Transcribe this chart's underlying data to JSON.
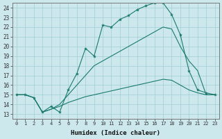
{
  "xlabel": "Humidex (Indice chaleur)",
  "xlim": [
    -0.5,
    23.5
  ],
  "ylim": [
    12.5,
    24.5
  ],
  "xticks": [
    0,
    1,
    2,
    3,
    4,
    5,
    6,
    7,
    8,
    9,
    10,
    11,
    12,
    13,
    14,
    15,
    16,
    17,
    18,
    19,
    20,
    21,
    22,
    23
  ],
  "yticks": [
    13,
    14,
    15,
    16,
    17,
    18,
    19,
    20,
    21,
    22,
    23,
    24
  ],
  "bg_color": "#cce8ed",
  "line_color": "#1a7a6e",
  "grid_color": "#9fcdd6",
  "line_top": [
    15.0,
    15.0,
    14.7,
    13.2,
    13.8,
    13.2,
    15.5,
    17.2,
    19.8,
    19.0,
    22.2,
    22.0,
    22.8,
    23.2,
    23.8,
    24.2,
    24.5,
    24.5,
    23.3,
    21.2,
    17.5,
    15.5,
    15.2,
    15.0
  ],
  "line_mid": [
    15.0,
    15.0,
    14.7,
    13.2,
    13.5,
    14.0,
    15.0,
    16.0,
    17.0,
    18.0,
    18.5,
    19.0,
    19.5,
    20.0,
    20.5,
    21.0,
    21.5,
    22.0,
    21.8,
    20.0,
    18.5,
    17.5,
    15.0,
    15.0
  ],
  "line_bot": [
    15.0,
    15.0,
    14.7,
    13.2,
    13.5,
    13.8,
    14.2,
    14.5,
    14.8,
    15.0,
    15.2,
    15.4,
    15.6,
    15.8,
    16.0,
    16.2,
    16.4,
    16.6,
    16.5,
    16.0,
    15.5,
    15.2,
    15.0,
    15.0
  ]
}
